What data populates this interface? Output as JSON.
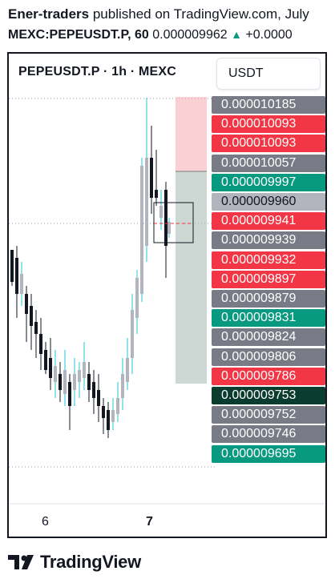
{
  "header": {
    "author": "Ener-traders",
    "published_text": "published on TradingView.com, July",
    "symbol": "MEXC:PEPEUSDT.P, 60",
    "last_price": "0.000009962",
    "change": "+0.0000"
  },
  "chart": {
    "title": "PEPEUSDT.P · 1h · MEXC",
    "currency": "USDT",
    "x_labels": [
      "6",
      "7"
    ],
    "colors": {
      "up": "#b2b5be",
      "down": "#131722",
      "wick_up": "#26c6da",
      "profit_zone": "#b2c1bd",
      "loss_zone": "#f7a9b0"
    }
  },
  "price_labels": [
    {
      "text": "0.000010185",
      "color": "#787b86"
    },
    {
      "text": "0.000010093",
      "color": "#f23645"
    },
    {
      "text": "0.000010093",
      "color": "#f23645"
    },
    {
      "text": "0.000010057",
      "color": "#787b86"
    },
    {
      "text": "0.000009997",
      "color": "#089981"
    },
    {
      "text": "0.000009960",
      "color": "#b2b5be"
    },
    {
      "text": "0.000009941",
      "color": "#f23645"
    },
    {
      "text": "0.000009939",
      "color": "#787b86"
    },
    {
      "text": "0.000009932",
      "color": "#f23645"
    },
    {
      "text": "0.000009897",
      "color": "#f23645"
    },
    {
      "text": "0.000009879",
      "color": "#787b86"
    },
    {
      "text": "0.000009831",
      "color": "#089981"
    },
    {
      "text": "0.000009824",
      "color": "#787b86"
    },
    {
      "text": "0.000009806",
      "color": "#787b86"
    },
    {
      "text": "0.000009786",
      "color": "#f23645"
    },
    {
      "text": "0.000009753",
      "color": "#0b3d2e"
    },
    {
      "text": "0.000009752",
      "color": "#787b86"
    },
    {
      "text": "0.000009746",
      "color": "#787b86"
    },
    {
      "text": "0.000009695",
      "color": "#089981"
    }
  ],
  "footer": {
    "brand": "TradingView"
  }
}
